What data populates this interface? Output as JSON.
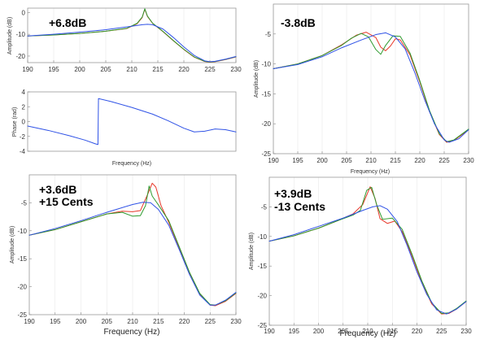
{
  "colors": {
    "red": "#e8382a",
    "green": "#2e9a2e",
    "blue": "#2f52e6"
  },
  "chart_data": [
    {
      "id": "p1",
      "type": "line",
      "annotation": [
        "+6.8dB"
      ],
      "ylabel": "Amplitude (dB)",
      "xlabel": "",
      "xlim": [
        190,
        230
      ],
      "ylim": [
        -23,
        2
      ],
      "xticks": [
        190,
        195,
        200,
        205,
        210,
        215,
        220,
        225,
        230
      ],
      "yticks": [
        0,
        -10,
        -20
      ],
      "series": [
        {
          "color": "red",
          "points": [
            [
              190,
              -10.8
            ],
            [
              195,
              -10.3
            ],
            [
              200,
              -9.6
            ],
            [
              205,
              -8.6
            ],
            [
              209,
              -7.4
            ],
            [
              211,
              -5.2
            ],
            [
              212,
              -2.3
            ],
            [
              212.5,
              1.5
            ],
            [
              213,
              -1.8
            ],
            [
              214,
              -5.0
            ],
            [
              216,
              -8.8
            ],
            [
              218,
              -13
            ],
            [
              220,
              -17
            ],
            [
              222,
              -20.5
            ],
            [
              224,
              -22.5
            ],
            [
              225,
              -22.8
            ],
            [
              226,
              -22.6
            ],
            [
              228,
              -21.6
            ],
            [
              230,
              -20.4
            ]
          ]
        },
        {
          "color": "green",
          "points": [
            [
              190,
              -10.8
            ],
            [
              195,
              -10.3
            ],
            [
              200,
              -9.6
            ],
            [
              205,
              -8.6
            ],
            [
              209,
              -7.3
            ],
            [
              211,
              -5.0
            ],
            [
              212,
              -2.1
            ],
            [
              212.5,
              1.7
            ],
            [
              213,
              -1.6
            ],
            [
              214,
              -4.9
            ],
            [
              216,
              -8.7
            ],
            [
              218,
              -12.9
            ],
            [
              220,
              -16.9
            ],
            [
              222,
              -20.4
            ],
            [
              224,
              -22.4
            ],
            [
              225,
              -22.7
            ],
            [
              226,
              -22.5
            ],
            [
              228,
              -21.5
            ],
            [
              230,
              -20.3
            ]
          ]
        },
        {
          "color": "blue",
          "points": [
            [
              190,
              -10.8
            ],
            [
              195,
              -10
            ],
            [
              200,
              -9
            ],
            [
              205,
              -7.9
            ],
            [
              210,
              -6.3
            ],
            [
              212,
              -5.6
            ],
            [
              213,
              -5.4
            ],
            [
              214,
              -5.6
            ],
            [
              216,
              -7.6
            ],
            [
              218,
              -11.5
            ],
            [
              220,
              -15.8
            ],
            [
              222,
              -19.7
            ],
            [
              224,
              -22.2
            ],
            [
              225,
              -22.6
            ],
            [
              226,
              -22.4
            ],
            [
              228,
              -21.4
            ],
            [
              230,
              -20.2
            ]
          ]
        }
      ]
    },
    {
      "id": "p1phase",
      "type": "line",
      "annotation": [],
      "ylabel": "Phase (rad)",
      "xlabel": "Frequency (Hz)",
      "xlim": [
        190,
        230
      ],
      "ylim": [
        -4,
        4
      ],
      "xticks": [],
      "yticks": [
        4,
        2,
        0,
        -2,
        -4
      ],
      "series": [
        {
          "color": "blue",
          "points": [
            [
              190,
              -0.6
            ],
            [
              194,
              -1.2
            ],
            [
              198,
              -1.9
            ],
            [
              201,
              -2.5
            ],
            [
              203,
              -3.0
            ],
            [
              203.5,
              -3.1
            ],
            [
              203.6,
              3.1
            ],
            [
              206,
              2.7
            ],
            [
              210,
              1.9
            ],
            [
              214,
              1.0
            ],
            [
              217,
              0.1
            ],
            [
              220,
              -0.9
            ],
            [
              222,
              -1.4
            ],
            [
              224,
              -1.3
            ],
            [
              226,
              -1.0
            ],
            [
              228,
              -1.1
            ],
            [
              230,
              -1.4
            ]
          ]
        }
      ]
    },
    {
      "id": "p2",
      "type": "line",
      "annotation": [
        "-3.8dB"
      ],
      "ylabel": "Amplitude (dB)",
      "xlabel": "Frequency (Hz)",
      "xlim": [
        190,
        230
      ],
      "ylim": [
        -25,
        0
      ],
      "xticks": [
        190,
        195,
        200,
        205,
        210,
        215,
        220,
        225,
        230
      ],
      "yticks": [
        -5,
        -10,
        -15,
        -20,
        -25
      ],
      "series": [
        {
          "color": "red",
          "points": [
            [
              190,
              -10.8
            ],
            [
              195,
              -10
            ],
            [
              200,
              -8.6
            ],
            [
              204,
              -6.8
            ],
            [
              207,
              -5.2
            ],
            [
              209,
              -4.7
            ],
            [
              211,
              -5.6
            ],
            [
              212,
              -7.2
            ],
            [
              213,
              -7.8
            ],
            [
              214,
              -7.0
            ],
            [
              215,
              -5.8
            ],
            [
              216,
              -6.0
            ],
            [
              218,
              -8.5
            ],
            [
              220,
              -13
            ],
            [
              222,
              -18
            ],
            [
              224,
              -21.8
            ],
            [
              225.5,
              -23.1
            ],
            [
              227,
              -22.8
            ],
            [
              230,
              -21
            ]
          ]
        },
        {
          "color": "green",
          "points": [
            [
              190,
              -10.8
            ],
            [
              195,
              -10
            ],
            [
              200,
              -8.6
            ],
            [
              204,
              -6.9
            ],
            [
              206,
              -5.7
            ],
            [
              208,
              -4.9
            ],
            [
              209.5,
              -5.5
            ],
            [
              211,
              -7.6
            ],
            [
              212,
              -8.4
            ],
            [
              213,
              -6.9
            ],
            [
              214.5,
              -5.3
            ],
            [
              216,
              -5.4
            ],
            [
              218,
              -8.2
            ],
            [
              220,
              -12.8
            ],
            [
              222,
              -17.8
            ],
            [
              224,
              -21.7
            ],
            [
              225.5,
              -23.0
            ],
            [
              227,
              -22.7
            ],
            [
              230,
              -20.9
            ]
          ]
        },
        {
          "color": "blue",
          "points": [
            [
              190,
              -10.8
            ],
            [
              195,
              -10.1
            ],
            [
              200,
              -8.8
            ],
            [
              204,
              -7.3
            ],
            [
              208,
              -6.0
            ],
            [
              211,
              -5.1
            ],
            [
              213,
              -4.8
            ],
            [
              215,
              -5.5
            ],
            [
              217,
              -7.5
            ],
            [
              219,
              -11.5
            ],
            [
              221,
              -16
            ],
            [
              223,
              -20
            ],
            [
              225,
              -22.7
            ],
            [
              226,
              -23.1
            ],
            [
              228,
              -22.5
            ],
            [
              230,
              -21
            ]
          ]
        }
      ]
    },
    {
      "id": "p3",
      "type": "line",
      "annotation": [
        "+3.6dB",
        "+15 Cents"
      ],
      "ylabel": "Amplitude (dB)",
      "xlabel": "Frequency (Hz)",
      "xlim": [
        190,
        230
      ],
      "ylim": [
        -25,
        0
      ],
      "xticks": [
        190,
        195,
        200,
        205,
        210,
        215,
        220,
        225,
        230
      ],
      "yticks": [
        -5,
        -10,
        -15,
        -20,
        -25
      ],
      "series": [
        {
          "color": "red",
          "points": [
            [
              190,
              -10.8
            ],
            [
              195,
              -9.8
            ],
            [
              200,
              -8.4
            ],
            [
              205,
              -7.0
            ],
            [
              208,
              -6.5
            ],
            [
              210,
              -6.6
            ],
            [
              211.5,
              -6.4
            ],
            [
              213,
              -3.3
            ],
            [
              213.8,
              -1.5
            ],
            [
              214.5,
              -2.2
            ],
            [
              215.5,
              -5.5
            ],
            [
              217,
              -8.5
            ],
            [
              219,
              -13
            ],
            [
              221,
              -17.5
            ],
            [
              223,
              -21.3
            ],
            [
              225,
              -23.3
            ],
            [
              226,
              -23.4
            ],
            [
              228,
              -22.6
            ],
            [
              230,
              -21.2
            ]
          ]
        },
        {
          "color": "green",
          "points": [
            [
              190,
              -10.8
            ],
            [
              195,
              -9.8
            ],
            [
              200,
              -8.4
            ],
            [
              205,
              -7.0
            ],
            [
              208,
              -6.7
            ],
            [
              210,
              -7.4
            ],
            [
              211.5,
              -7.3
            ],
            [
              212.5,
              -5.5
            ],
            [
              213.2,
              -2.0
            ],
            [
              213.8,
              -3.8
            ],
            [
              215,
              -5.4
            ],
            [
              217,
              -8.2
            ],
            [
              219,
              -12.8
            ],
            [
              221,
              -17.4
            ],
            [
              223,
              -21.2
            ],
            [
              225,
              -23.2
            ],
            [
              226,
              -23.3
            ],
            [
              228,
              -22.5
            ],
            [
              230,
              -21.1
            ]
          ]
        },
        {
          "color": "blue",
          "points": [
            [
              190,
              -10.8
            ],
            [
              195,
              -9.6
            ],
            [
              200,
              -8.2
            ],
            [
              205,
              -6.7
            ],
            [
              210,
              -5.3
            ],
            [
              212,
              -4.9
            ],
            [
              213.5,
              -5.0
            ],
            [
              215,
              -6.2
            ],
            [
              217,
              -9
            ],
            [
              219,
              -13.3
            ],
            [
              221,
              -17.8
            ],
            [
              223,
              -21.5
            ],
            [
              225,
              -23.3
            ],
            [
              226,
              -23.3
            ],
            [
              228,
              -22.4
            ],
            [
              230,
              -21
            ]
          ]
        }
      ]
    },
    {
      "id": "p4",
      "type": "line",
      "annotation": [
        "+3.9dB",
        "-13 Cents"
      ],
      "ylabel": "Amplitude (dB)",
      "xlabel": "Frequency (Hz)",
      "xlim": [
        190,
        230
      ],
      "ylim": [
        -25,
        0
      ],
      "xticks": [
        190,
        195,
        200,
        205,
        210,
        215,
        220,
        225,
        230
      ],
      "yticks": [
        -5,
        -10,
        -15,
        -20,
        -25
      ],
      "series": [
        {
          "color": "red",
          "points": [
            [
              190,
              -10.8
            ],
            [
              195,
              -9.9
            ],
            [
              200,
              -8.6
            ],
            [
              204,
              -7.3
            ],
            [
              207,
              -6.2
            ],
            [
              209,
              -4.6
            ],
            [
              210.5,
              -1.6
            ],
            [
              211.5,
              -3.6
            ],
            [
              212.5,
              -7.0
            ],
            [
              214,
              -7.8
            ],
            [
              215.5,
              -7.4
            ],
            [
              217,
              -9.2
            ],
            [
              219,
              -13.3
            ],
            [
              221,
              -17.8
            ],
            [
              223,
              -21.4
            ],
            [
              225,
              -23.1
            ],
            [
              226.5,
              -23.0
            ],
            [
              228,
              -22.3
            ],
            [
              230,
              -21
            ]
          ]
        },
        {
          "color": "green",
          "points": [
            [
              190,
              -10.8
            ],
            [
              195,
              -9.9
            ],
            [
              200,
              -8.6
            ],
            [
              204,
              -7.3
            ],
            [
              207,
              -6.4
            ],
            [
              208.5,
              -5.6
            ],
            [
              209.8,
              -2.2
            ],
            [
              210.8,
              -1.7
            ],
            [
              211.8,
              -4.6
            ],
            [
              213,
              -7.1
            ],
            [
              215,
              -6.9
            ],
            [
              217,
              -8.8
            ],
            [
              219,
              -13
            ],
            [
              221,
              -17.5
            ],
            [
              223,
              -21.2
            ],
            [
              225,
              -23.0
            ],
            [
              226.5,
              -22.9
            ],
            [
              228,
              -22.2
            ],
            [
              230,
              -20.9
            ]
          ]
        },
        {
          "color": "blue",
          "points": [
            [
              190,
              -10.8
            ],
            [
              195,
              -9.7
            ],
            [
              200,
              -8.3
            ],
            [
              205,
              -6.9
            ],
            [
              209,
              -5.6
            ],
            [
              211,
              -5.0
            ],
            [
              212.5,
              -4.8
            ],
            [
              214,
              -5.4
            ],
            [
              216,
              -7.5
            ],
            [
              218,
              -11.5
            ],
            [
              220,
              -16
            ],
            [
              222,
              -19.8
            ],
            [
              224,
              -22.4
            ],
            [
              226,
              -23.1
            ],
            [
              228,
              -22.3
            ],
            [
              230,
              -21
            ]
          ]
        }
      ]
    }
  ]
}
